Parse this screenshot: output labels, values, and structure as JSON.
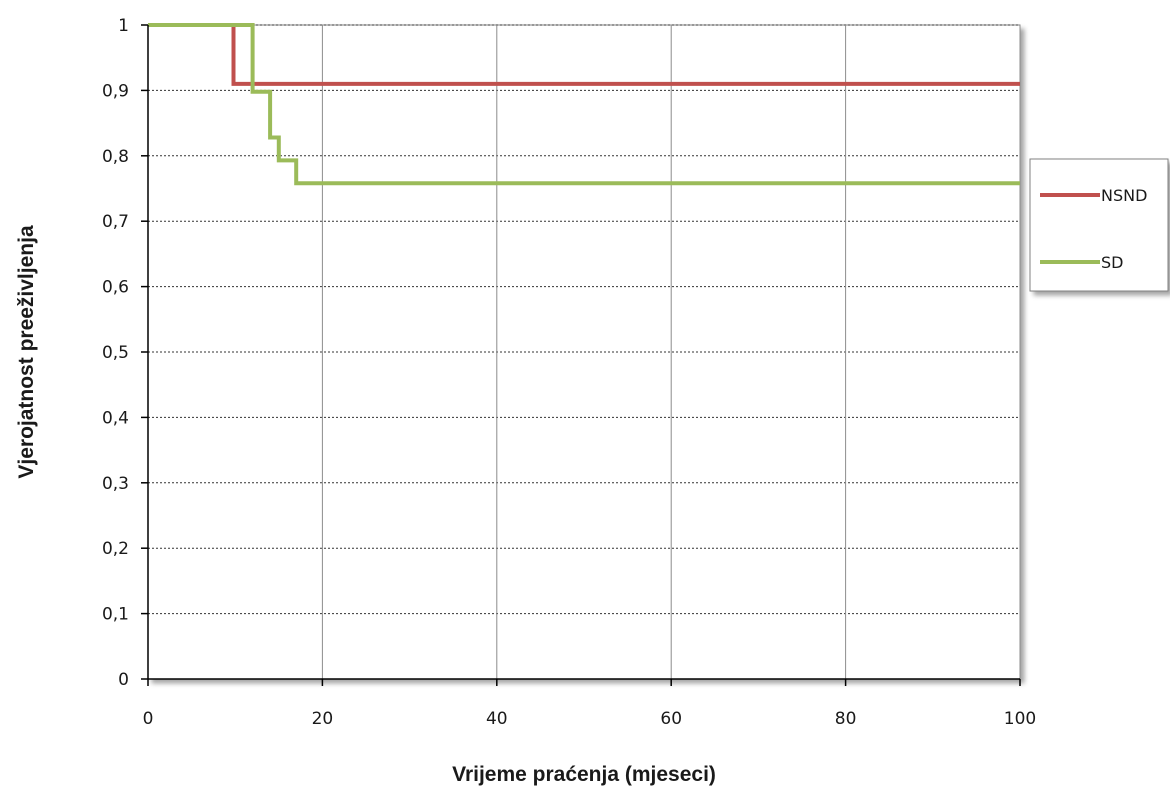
{
  "chart_data": {
    "type": "line",
    "step": true,
    "xlabel": "Vrijeme praćenja (mjeseci)",
    "ylabel": "Vjerojatnost preeživljenja",
    "xlim": [
      0,
      100
    ],
    "ylim": [
      0,
      1
    ],
    "xticks": [
      "0",
      "20",
      "40",
      "60",
      "80",
      "100"
    ],
    "yticks": [
      "0",
      "0,1",
      "0,2",
      "0,3",
      "0,4",
      "0,5",
      "0,6",
      "0,7",
      "0,8",
      "0,9",
      "1"
    ],
    "grid": true,
    "legend_position": "right",
    "series": [
      {
        "name": "NSND",
        "color": "#c0504d",
        "points": [
          [
            0,
            1.0
          ],
          [
            9.8,
            1.0
          ],
          [
            9.8,
            0.91
          ],
          [
            100,
            0.91
          ]
        ]
      },
      {
        "name": "SD",
        "color": "#9bbb59",
        "points": [
          [
            0,
            1.0
          ],
          [
            12,
            1.0
          ],
          [
            12,
            0.898
          ],
          [
            14,
            0.898
          ],
          [
            14,
            0.828
          ],
          [
            15,
            0.828
          ],
          [
            15,
            0.793
          ],
          [
            17,
            0.793
          ],
          [
            17,
            0.758
          ],
          [
            100,
            0.758
          ]
        ]
      }
    ]
  }
}
